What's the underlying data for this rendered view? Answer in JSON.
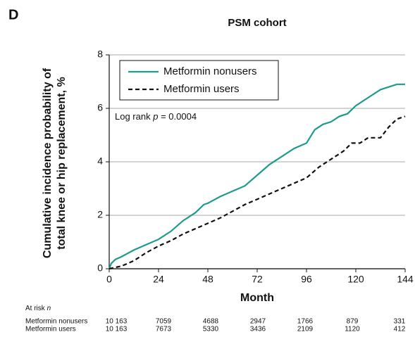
{
  "chart_data": {
    "type": "line",
    "panel": "D",
    "title": "PSM cohort",
    "xlabel": "Month",
    "ylabel": [
      "Cumulative incidence probability of",
      "total knee or hip replacement, %"
    ],
    "annotation": [
      "Log rank",
      "p",
      "= 0.0004"
    ],
    "xlim": [
      0,
      144
    ],
    "xticks": [
      0,
      24,
      48,
      72,
      96,
      120,
      144
    ],
    "ylim": [
      0,
      8
    ],
    "yticks": [
      0,
      2,
      4,
      6,
      8
    ],
    "grid": true,
    "legend": "upper left",
    "series": [
      {
        "name": "Metformin nonusers",
        "color": "#1f9b8c",
        "dash": false,
        "x": [
          0,
          1,
          3,
          6,
          12,
          18,
          24,
          30,
          36,
          42,
          46,
          48,
          54,
          60,
          66,
          72,
          78,
          84,
          90,
          96,
          100,
          104,
          108,
          112,
          116,
          120,
          124,
          128,
          132,
          140,
          144
        ],
        "values": [
          0,
          0.2,
          0.35,
          0.45,
          0.7,
          0.9,
          1.1,
          1.4,
          1.8,
          2.1,
          2.4,
          2.45,
          2.7,
          2.9,
          3.1,
          3.5,
          3.9,
          4.2,
          4.5,
          4.7,
          5.2,
          5.4,
          5.5,
          5.7,
          5.8,
          6.1,
          6.3,
          6.5,
          6.7,
          6.9,
          6.9
        ]
      },
      {
        "name": "Metformin users",
        "color": "#111111",
        "dash": true,
        "x": [
          0,
          6,
          12,
          18,
          24,
          30,
          36,
          42,
          48,
          54,
          60,
          66,
          72,
          78,
          84,
          90,
          96,
          102,
          108,
          114,
          118,
          122,
          126,
          132,
          136,
          140,
          144
        ],
        "values": [
          0,
          0.1,
          0.3,
          0.6,
          0.85,
          1.05,
          1.3,
          1.5,
          1.7,
          1.9,
          2.15,
          2.4,
          2.6,
          2.8,
          3.0,
          3.2,
          3.4,
          3.8,
          4.1,
          4.4,
          4.7,
          4.7,
          4.9,
          4.9,
          5.3,
          5.6,
          5.7
        ]
      }
    ],
    "at_risk": {
      "label": [
        "At risk",
        "n"
      ],
      "rows": [
        {
          "name": "Metformin nonusers",
          "counts": [
            "10 163",
            "7059",
            "4688",
            "2947",
            "1766",
            "879",
            "331"
          ]
        },
        {
          "name": "Metformin users",
          "counts": [
            "10 163",
            "7673",
            "5330",
            "3436",
            "2109",
            "1120",
            "412"
          ]
        }
      ]
    }
  }
}
